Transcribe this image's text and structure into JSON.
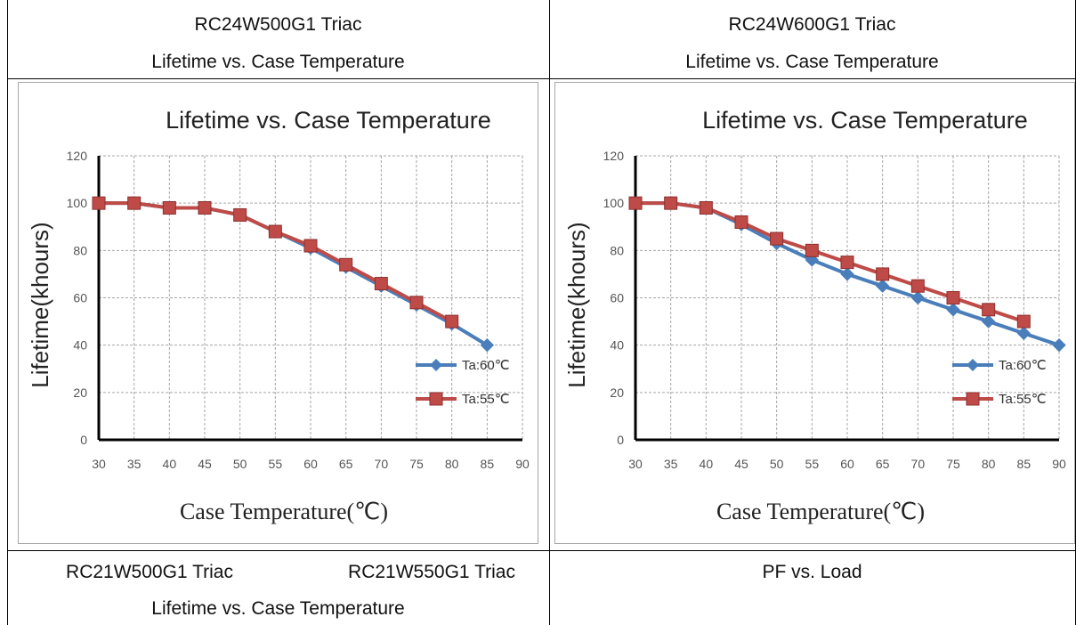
{
  "table": {
    "row1": {
      "left_line1": "RC24W500G1 Triac",
      "left_line2": "Lifetime vs. Case Temperature",
      "right_line1": "RC24W600G1 Triac",
      "right_line2": "Lifetime vs. Case Temperature"
    },
    "row3": {
      "left_a": "RC21W500G1 Triac",
      "left_b": "RC21W550G1 Triac",
      "left_line2": "Lifetime vs. Case Temperature",
      "right_line1": "PF vs. Load"
    }
  },
  "colors": {
    "ta60": "#4a7ebb",
    "ta55": "#be4b48",
    "grid": "#a6a6a6",
    "frame": "#a6a6a6"
  },
  "chart_data": [
    {
      "type": "line",
      "title": "Lifetime vs. Case Temperature",
      "xlabel": "Case Temperature(℃)",
      "ylabel": "Lifetime(khours)",
      "xlim": [
        30,
        90
      ],
      "ylim": [
        0,
        120
      ],
      "xticks": [
        "30",
        "35",
        "40",
        "45",
        "50",
        "55",
        "60",
        "65",
        "70",
        "75",
        "80",
        "85",
        "90"
      ],
      "yticks": [
        "0",
        "20",
        "40",
        "60",
        "80",
        "100",
        "120"
      ],
      "grid": true,
      "legend": "right",
      "series": [
        {
          "name": "Ta:60℃",
          "marker": "diamond",
          "x": [
            30,
            35,
            40,
            45,
            50,
            55,
            60,
            65,
            70,
            75,
            80,
            85
          ],
          "y": [
            100,
            100,
            98,
            98,
            95,
            88,
            81,
            73,
            65,
            57,
            49,
            40
          ]
        },
        {
          "name": "Ta:55℃",
          "marker": "square",
          "x": [
            30,
            35,
            40,
            45,
            50,
            55,
            60,
            65,
            70,
            75,
            80
          ],
          "y": [
            100,
            100,
            98,
            98,
            95,
            88,
            82,
            74,
            66,
            58,
            50
          ]
        }
      ]
    },
    {
      "type": "line",
      "title": "Lifetime vs. Case Temperature",
      "xlabel": "Case Temperature(℃)",
      "ylabel": "Lifetime(khours)",
      "xlim": [
        30,
        90
      ],
      "ylim": [
        0,
        120
      ],
      "xticks": [
        "30",
        "35",
        "40",
        "45",
        "50",
        "55",
        "60",
        "65",
        "70",
        "75",
        "80",
        "85",
        "90"
      ],
      "yticks": [
        "0",
        "20",
        "40",
        "60",
        "80",
        "100",
        "120"
      ],
      "grid": true,
      "legend": "right",
      "series": [
        {
          "name": "Ta:60℃",
          "marker": "diamond",
          "x": [
            30,
            35,
            40,
            45,
            50,
            55,
            60,
            65,
            70,
            75,
            80,
            85,
            90
          ],
          "y": [
            100,
            100,
            98,
            91,
            83,
            76,
            70,
            65,
            60,
            55,
            50,
            45,
            40
          ]
        },
        {
          "name": "Ta:55℃",
          "marker": "square",
          "x": [
            30,
            35,
            40,
            45,
            50,
            55,
            60,
            65,
            70,
            75,
            80,
            85
          ],
          "y": [
            100,
            100,
            98,
            92,
            85,
            80,
            75,
            70,
            65,
            60,
            55,
            50
          ]
        }
      ]
    }
  ]
}
